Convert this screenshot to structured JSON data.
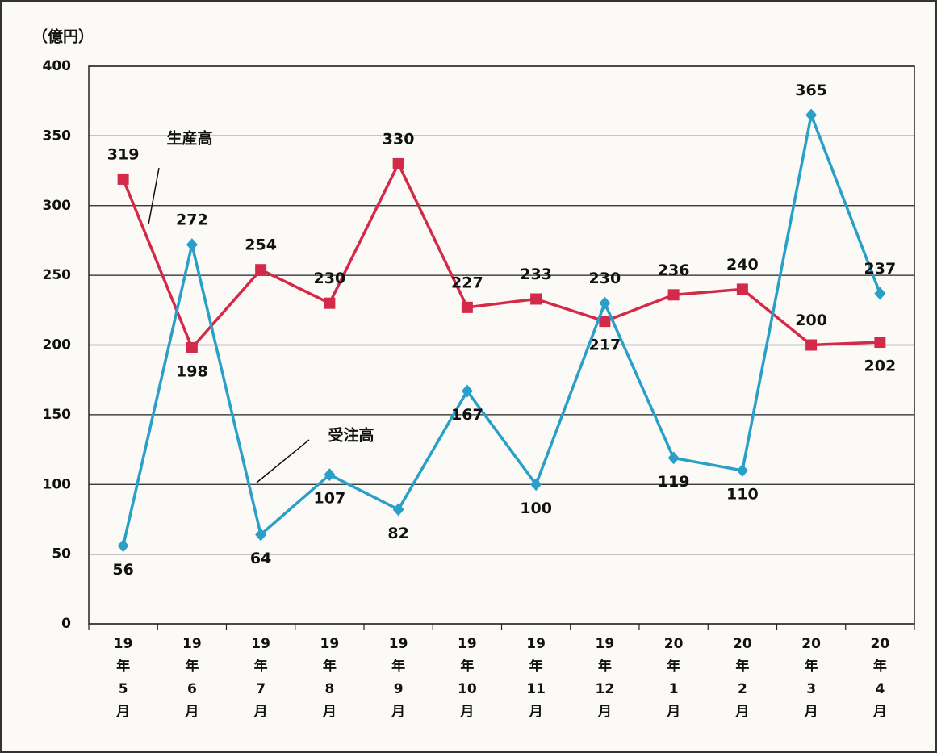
{
  "chart_data": {
    "type": "line",
    "ylabel": "（億円）",
    "categories": [
      "19年5月",
      "19年6月",
      "19年7月",
      "19年8月",
      "19年9月",
      "19年10月",
      "19年11月",
      "19年12月",
      "20年1月",
      "20年2月",
      "20年3月",
      "20年4月"
    ],
    "series": [
      {
        "name": "生産高",
        "color": "#d42a4a",
        "label_color": "#d42a2a",
        "marker": "square",
        "values": [
          319,
          198,
          254,
          230,
          330,
          227,
          233,
          217,
          236,
          240,
          200,
          202
        ]
      },
      {
        "name": "受注高",
        "color": "#2a9fc8",
        "label_color": "#111111",
        "marker": "diamond",
        "values": [
          56,
          272,
          64,
          107,
          82,
          167,
          100,
          230,
          119,
          110,
          365,
          237
        ]
      }
    ],
    "ylim": [
      0,
      400
    ],
    "yticks": [
      0,
      50,
      100,
      150,
      200,
      250,
      300,
      350,
      400
    ],
    "grid": true
  }
}
